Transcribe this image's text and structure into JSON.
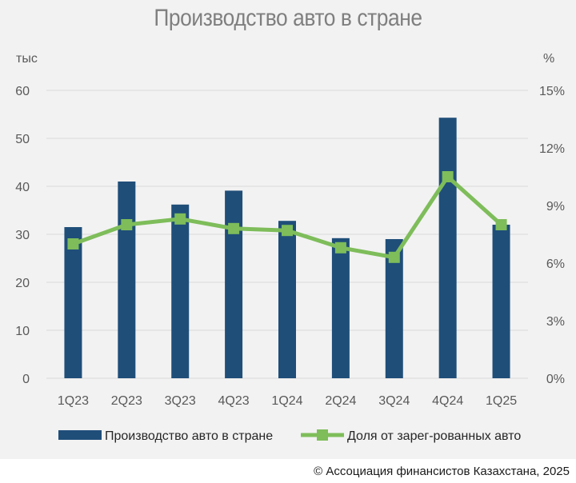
{
  "title": "Производство авто в стране",
  "credit": "© Ассоциация финансистов Казахстана, 2025",
  "chart_data": {
    "type": "bar",
    "title": "Производство авто в стране",
    "categories": [
      "1Q23",
      "2Q23",
      "3Q23",
      "4Q23",
      "1Q24",
      "2Q24",
      "3Q24",
      "4Q24",
      "1Q25"
    ],
    "left_axis": {
      "unit": "тыс",
      "ylim": [
        0,
        60
      ],
      "ticks": [
        "0",
        "10",
        "20",
        "30",
        "40",
        "50",
        "60"
      ]
    },
    "right_axis": {
      "unit": "%",
      "ylim": [
        0,
        15
      ],
      "ticks": [
        "0%",
        "3%",
        "6%",
        "9%",
        "12%",
        "15%"
      ]
    },
    "grid": true,
    "legend_position": "bottom",
    "series": [
      {
        "name": "Производство авто в стране",
        "type": "bar",
        "axis": "left",
        "color": "#1f4e79",
        "values": [
          31.5,
          41.0,
          36.2,
          39.1,
          32.8,
          29.2,
          29.0,
          54.3,
          32.0
        ]
      },
      {
        "name": "Доля от зарег-рованных авто",
        "type": "line",
        "axis": "right",
        "color": "#7ebd5a",
        "values": [
          7.0,
          8.0,
          8.3,
          7.8,
          7.7,
          6.8,
          6.3,
          10.5,
          8.0
        ]
      }
    ]
  }
}
